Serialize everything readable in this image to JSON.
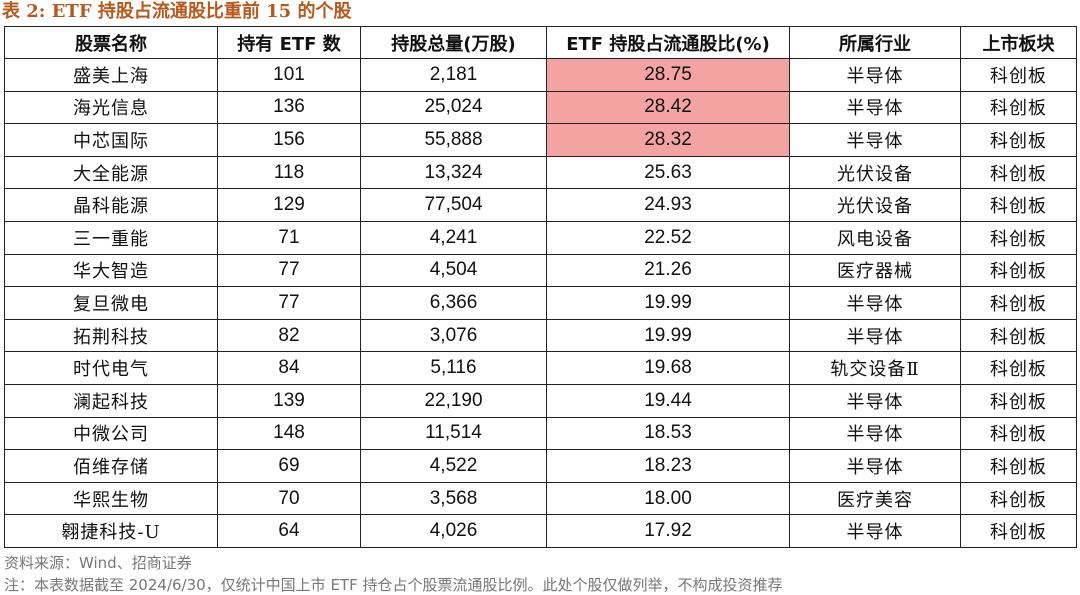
{
  "title": "表 2:  ETF 持股占流通股比重前 15 的个股",
  "columns": [
    "股票名称",
    "持有 ETF 数",
    "持股总量(万股)",
    "ETF 持股占流通股比(%)",
    "所属行业",
    "上市板块"
  ],
  "highlight_color": "#f4a3a3",
  "title_color": "#b5591c",
  "rows": [
    {
      "name": "盛美上海",
      "etf_count": "101",
      "holding": "2,181",
      "ratio": "28.75",
      "industry": "半导体",
      "board": "科创板",
      "highlight": true
    },
    {
      "name": "海光信息",
      "etf_count": "136",
      "holding": "25,024",
      "ratio": "28.42",
      "industry": "半导体",
      "board": "科创板",
      "highlight": true
    },
    {
      "name": "中芯国际",
      "etf_count": "156",
      "holding": "55,888",
      "ratio": "28.32",
      "industry": "半导体",
      "board": "科创板",
      "highlight": true
    },
    {
      "name": "大全能源",
      "etf_count": "118",
      "holding": "13,324",
      "ratio": "25.63",
      "industry": "光伏设备",
      "board": "科创板",
      "highlight": false
    },
    {
      "name": "晶科能源",
      "etf_count": "129",
      "holding": "77,504",
      "ratio": "24.93",
      "industry": "光伏设备",
      "board": "科创板",
      "highlight": false
    },
    {
      "name": "三一重能",
      "etf_count": "71",
      "holding": "4,241",
      "ratio": "22.52",
      "industry": "风电设备",
      "board": "科创板",
      "highlight": false
    },
    {
      "name": "华大智造",
      "etf_count": "77",
      "holding": "4,504",
      "ratio": "21.26",
      "industry": "医疗器械",
      "board": "科创板",
      "highlight": false
    },
    {
      "name": "复旦微电",
      "etf_count": "77",
      "holding": "6,366",
      "ratio": "19.99",
      "industry": "半导体",
      "board": "科创板",
      "highlight": false
    },
    {
      "name": "拓荆科技",
      "etf_count": "82",
      "holding": "3,076",
      "ratio": "19.99",
      "industry": "半导体",
      "board": "科创板",
      "highlight": false
    },
    {
      "name": "时代电气",
      "etf_count": "84",
      "holding": "5,116",
      "ratio": "19.68",
      "industry": "轨交设备Ⅱ",
      "board": "科创板",
      "highlight": false
    },
    {
      "name": "澜起科技",
      "etf_count": "139",
      "holding": "22,190",
      "ratio": "19.44",
      "industry": "半导体",
      "board": "科创板",
      "highlight": false
    },
    {
      "name": "中微公司",
      "etf_count": "148",
      "holding": "11,514",
      "ratio": "18.53",
      "industry": "半导体",
      "board": "科创板",
      "highlight": false
    },
    {
      "name": "佰维存储",
      "etf_count": "69",
      "holding": "4,522",
      "ratio": "18.23",
      "industry": "半导体",
      "board": "科创板",
      "highlight": false
    },
    {
      "name": "华熙生物",
      "etf_count": "70",
      "holding": "3,568",
      "ratio": "18.00",
      "industry": "医疗美容",
      "board": "科创板",
      "highlight": false
    },
    {
      "name": "翱捷科技-U",
      "etf_count": "64",
      "holding": "4,026",
      "ratio": "17.92",
      "industry": "半导体",
      "board": "科创板",
      "highlight": false
    }
  ],
  "source": "资料来源：Wind、招商证券",
  "note": "注：本表数据截至 2024/6/30，仅统计中国上市 ETF 持仓占个股票流通股比例。此处个股仅做列举，不构成投资推荐"
}
